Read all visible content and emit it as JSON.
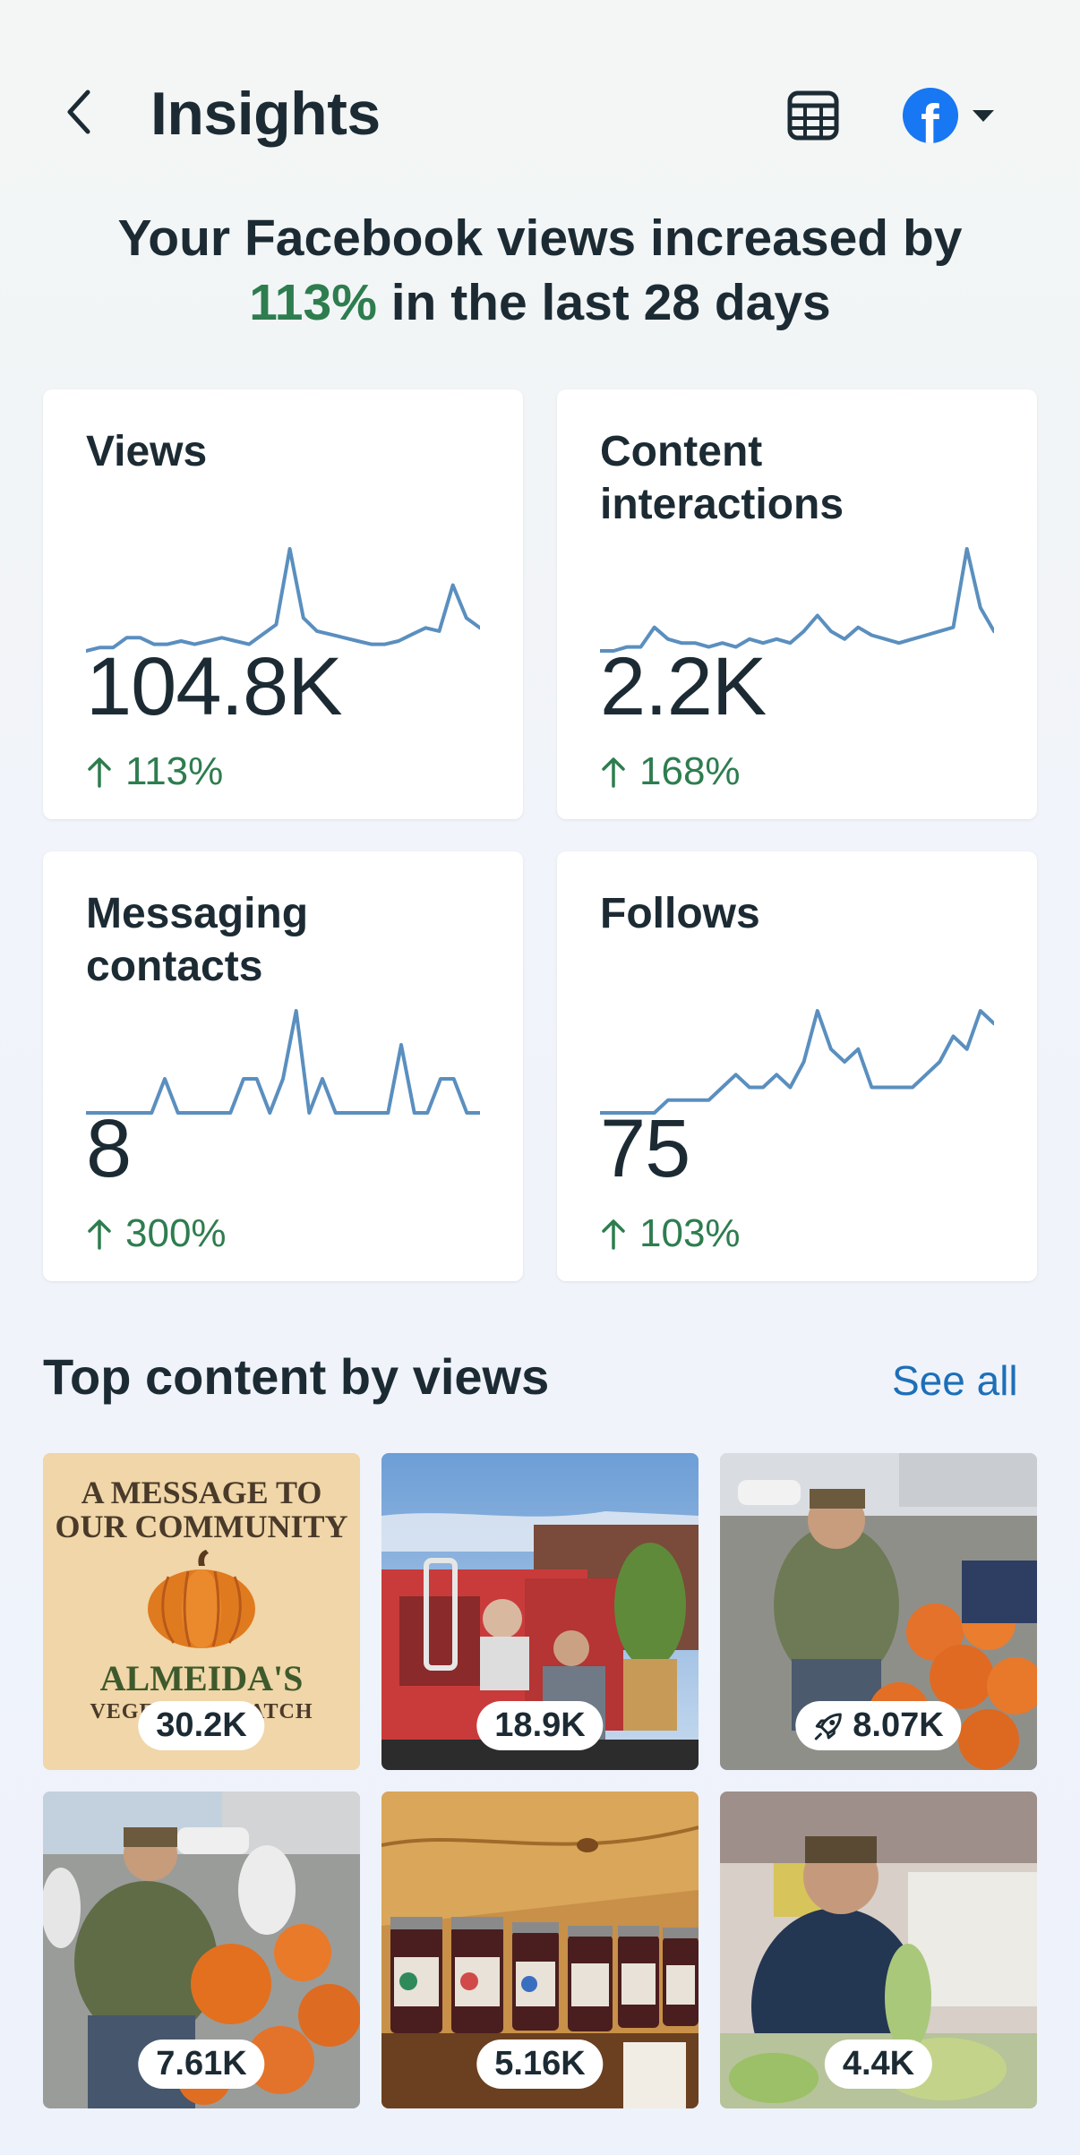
{
  "header": {
    "title": "Insights",
    "back_icon": "chevron-left-icon",
    "calendar_icon": "calendar-icon",
    "account_icon": "facebook-icon",
    "dropdown_icon": "caret-down-icon"
  },
  "headline": {
    "line1": "Your Facebook views increased by",
    "percent": "113%",
    "line2_rest": " in the last 28 days"
  },
  "metrics": [
    {
      "title": "Views",
      "value": "104.8K",
      "change": "113%",
      "trend_series": [
        4,
        5,
        5,
        8,
        8,
        6,
        6,
        7,
        6,
        7,
        8,
        7,
        6,
        9,
        12,
        35,
        14,
        10,
        9,
        8,
        7,
        6,
        6,
        7,
        9,
        11,
        10,
        24,
        14,
        11
      ]
    },
    {
      "title": "Content interactions",
      "value": "2.2K",
      "change": "168%",
      "trend_series": [
        3,
        3,
        4,
        4,
        9,
        6,
        5,
        5,
        4,
        5,
        4,
        6,
        5,
        6,
        5,
        8,
        12,
        8,
        6,
        9,
        7,
        6,
        5,
        6,
        7,
        8,
        9,
        29,
        14,
        8
      ]
    },
    {
      "title": "Messaging contacts",
      "value": "8",
      "change": "300%",
      "trend_series": [
        0,
        0,
        0,
        0,
        0,
        0,
        1,
        0,
        0,
        0,
        0,
        0,
        1,
        1,
        0,
        1,
        3,
        0,
        1,
        0,
        0,
        0,
        0,
        0,
        2,
        0,
        0,
        1,
        1,
        0,
        0
      ]
    },
    {
      "title": "Follows",
      "value": "75",
      "change": "103%",
      "trend_series": [
        1,
        1,
        1,
        1,
        1,
        2,
        2,
        2,
        2,
        3,
        4,
        3,
        3,
        4,
        3,
        5,
        9,
        6,
        5,
        6,
        3,
        3,
        3,
        3,
        4,
        5,
        7,
        6,
        9,
        8
      ]
    }
  ],
  "top_content": {
    "title": "Top content by views",
    "see_all": "See all",
    "items": [
      {
        "views": "30.2K",
        "kind": "message",
        "line1": "A MESSAGE TO",
        "line2": "OUR COMMUNITY",
        "brand": "ALMEIDA'S",
        "brand_sub": "VEGETABLE PATCH",
        "boosted": false
      },
      {
        "views": "18.9K",
        "kind": "truck",
        "boosted": false
      },
      {
        "views": "8.07K",
        "kind": "pumpkins",
        "boosted": true,
        "boost_icon": "rocket-icon"
      },
      {
        "views": "7.61K",
        "kind": "pumpkins2",
        "boosted": false
      },
      {
        "views": "5.16K",
        "kind": "jars",
        "boosted": false
      },
      {
        "views": "4.4K",
        "kind": "market",
        "boosted": false
      }
    ]
  },
  "colors": {
    "accent_green": "#2e7d4f",
    "link_blue": "#1d6fb8",
    "spark_blue": "#5a8fbf",
    "facebook_blue": "#1877f2"
  }
}
